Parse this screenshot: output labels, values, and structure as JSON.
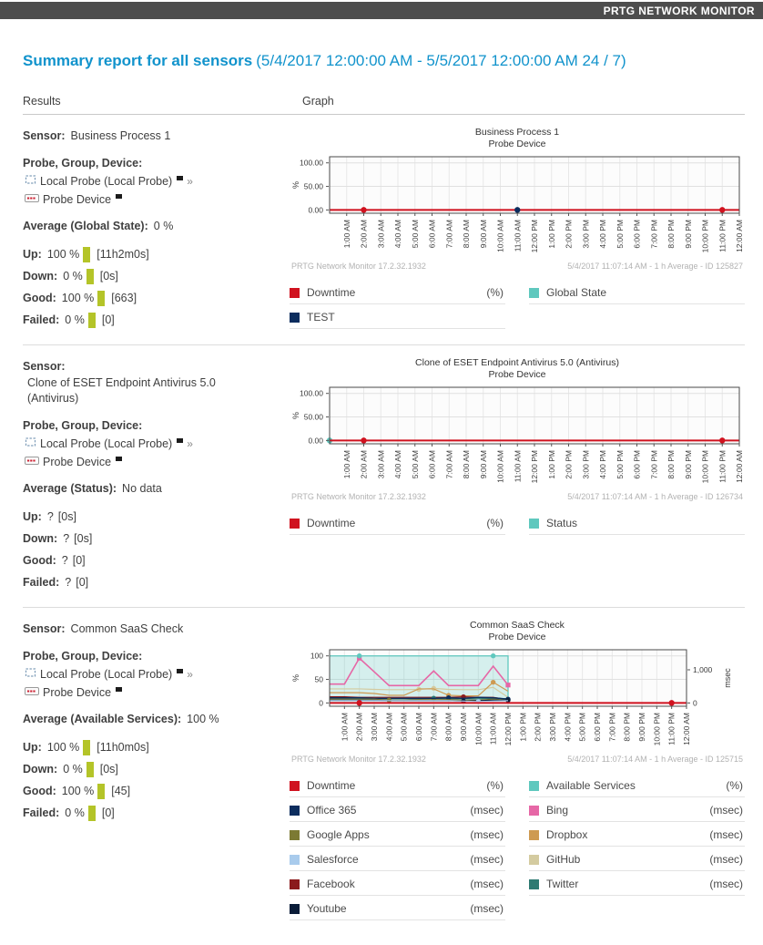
{
  "app": {
    "brand": "PRTG NETWORK MONITOR"
  },
  "report": {
    "title": "Summary report for all sensors",
    "date_range": "(5/4/2017 12:00:00 AM - 5/5/2017 12:00:00 AM 24 / 7)",
    "columns": {
      "results": "Results",
      "graph": "Graph"
    }
  },
  "labels": {
    "sensor": "Sensor:",
    "probe_group_device": "Probe, Group, Device:",
    "more": "»"
  },
  "colors": {
    "topbar": "#4D4D4D",
    "accent_blue": "#1193CC",
    "stat_bar": "#B4C428",
    "downtime_red": "#D0121F",
    "teal": "#5FC8BE"
  },
  "x_labels": [
    "1:00 AM",
    "2:00 AM",
    "3:00 AM",
    "4:00 AM",
    "5:00 AM",
    "6:00 AM",
    "7:00 AM",
    "8:00 AM",
    "9:00 AM",
    "10:00 AM",
    "11:00 AM",
    "12:00 PM",
    "1:00 PM",
    "2:00 PM",
    "3:00 PM",
    "4:00 PM",
    "5:00 PM",
    "6:00 PM",
    "7:00 PM",
    "8:00 PM",
    "9:00 PM",
    "10:00 PM",
    "11:00 PM",
    "12:00 AM"
  ],
  "sections": [
    {
      "sensor_name": "Business Process 1",
      "sensor_name_lines": null,
      "probe": "Local Probe (Local Probe)",
      "device": "Probe Device",
      "average_label": "Average (Global State):",
      "average_value": "0 %",
      "stats": [
        {
          "label": "Up:",
          "value": "100 %",
          "bar": true,
          "note": "[11h2m0s]"
        },
        {
          "label": "Down:",
          "value": "0 %",
          "bar": true,
          "note": "[0s]"
        },
        {
          "label": "Good:",
          "value": "100 %",
          "bar": true,
          "note": "[663]"
        },
        {
          "label": "Failed:",
          "value": "0 %",
          "bar": true,
          "note": "[0]"
        }
      ],
      "graph": {
        "title": "Business Process 1",
        "subtitle": "Probe Device",
        "footer_left": "PRTG Network Monitor 17.2.32.1932",
        "footer_right": "5/4/2017 11:07:14 AM - 1 h Average - ID 125827",
        "y_left": {
          "unit": "%",
          "ticks": [
            {
              "v": 100,
              "label": "100.00"
            },
            {
              "v": 50,
              "label": "50.00"
            },
            {
              "v": 0,
              "label": "0.00"
            }
          ]
        },
        "y_right": null,
        "area": null,
        "series": [
          {
            "name": "Global State",
            "color": "#5FC8BE",
            "axis": "left",
            "width": 1.2,
            "values": [
              0,
              0,
              0,
              0,
              0,
              0,
              0,
              0,
              0,
              0,
              0,
              0,
              0,
              0,
              0,
              0,
              0,
              0,
              0,
              0,
              0,
              0,
              0,
              0
            ],
            "markers": []
          },
          {
            "name": "Downtime",
            "color": "#D0121F",
            "axis": "left",
            "width": 2,
            "values": [
              0,
              0,
              0,
              0,
              0,
              0,
              0,
              0,
              0,
              0,
              0,
              0,
              0,
              0,
              0,
              0,
              0,
              0,
              0,
              0,
              0,
              0,
              0,
              0
            ],
            "markers": [
              2,
              23
            ]
          },
          {
            "name": "TEST",
            "color": "#0C2D5E",
            "axis": "left",
            "width": 1.2,
            "values": null,
            "markers": [
              11
            ]
          }
        ]
      },
      "legend": [
        {
          "label": "Downtime",
          "unit": "(%)",
          "color": "#D0121F"
        },
        {
          "label": "Global State",
          "unit": "",
          "color": "#5FC8BE"
        },
        {
          "label": "TEST",
          "unit": "",
          "color": "#0C2D5E"
        }
      ]
    },
    {
      "sensor_name": "Clone of ESET Endpoint Antivirus 5.0 (Antivirus)",
      "sensor_name_lines": [
        "Clone of ESET Endpoint Antivirus 5.0",
        "(Antivirus)"
      ],
      "probe": "Local Probe (Local Probe)",
      "device": "Probe Device",
      "average_label": "Average (Status):",
      "average_value": "No data",
      "stats": [
        {
          "label": "Up:",
          "value": "?",
          "bar": false,
          "note": "[0s]"
        },
        {
          "label": "Down:",
          "value": "?",
          "bar": false,
          "note": "[0s]"
        },
        {
          "label": "Good:",
          "value": "?",
          "bar": false,
          "note": "[0]"
        },
        {
          "label": "Failed:",
          "value": "?",
          "bar": false,
          "note": "[0]"
        }
      ],
      "graph": {
        "title": "Clone of ESET Endpoint Antivirus 5.0 (Antivirus)",
        "subtitle": "Probe Device",
        "footer_left": "PRTG Network Monitor 17.2.32.1932",
        "footer_right": "5/4/2017 11:07:14 AM - 1 h Average - ID 126734",
        "y_left": {
          "unit": "%",
          "ticks": [
            {
              "v": 100,
              "label": "100.00"
            },
            {
              "v": 50,
              "label": "50.00"
            },
            {
              "v": 0,
              "label": "0.00"
            }
          ]
        },
        "y_right": null,
        "area": null,
        "series": [
          {
            "name": "Status",
            "color": "#5FC8BE",
            "axis": "left",
            "width": 1.2,
            "values": [
              0,
              0,
              0,
              0,
              0,
              0,
              0,
              0,
              0,
              0,
              0,
              0,
              0,
              0,
              0,
              0,
              0,
              0,
              0,
              0,
              0,
              0,
              0,
              0
            ],
            "markers": [
              0
            ]
          },
          {
            "name": "Downtime",
            "color": "#D0121F",
            "axis": "left",
            "width": 2,
            "values": [
              0,
              0,
              0,
              0,
              0,
              0,
              0,
              0,
              0,
              0,
              0,
              0,
              0,
              0,
              0,
              0,
              0,
              0,
              0,
              0,
              0,
              0,
              0,
              0
            ],
            "markers": [
              2,
              23
            ]
          }
        ]
      },
      "legend": [
        {
          "label": "Downtime",
          "unit": "(%)",
          "color": "#D0121F"
        },
        {
          "label": "Status",
          "unit": "",
          "color": "#5FC8BE"
        }
      ]
    },
    {
      "sensor_name": "Common SaaS Check",
      "sensor_name_lines": null,
      "probe": "Local Probe (Local Probe)",
      "device": "Probe Device",
      "average_label": "Average (Available Services):",
      "average_value": "100 %",
      "stats": [
        {
          "label": "Up:",
          "value": "100 %",
          "bar": true,
          "note": "[11h0m0s]"
        },
        {
          "label": "Down:",
          "value": "0 %",
          "bar": true,
          "note": "[0s]"
        },
        {
          "label": "Good:",
          "value": "100 %",
          "bar": true,
          "note": "[45]"
        },
        {
          "label": "Failed:",
          "value": "0 %",
          "bar": true,
          "note": "[0]"
        }
      ],
      "graph": {
        "title": "Common SaaS Check",
        "subtitle": "Probe Device",
        "footer_left": "PRTG Network Monitor 17.2.32.1932",
        "footer_right": "5/4/2017 11:07:14 AM - 1 h Average - ID 125715",
        "y_left": {
          "unit": "%",
          "ticks": [
            {
              "v": 100,
              "label": "100"
            },
            {
              "v": 50,
              "label": "50"
            },
            {
              "v": 0,
              "label": "0"
            }
          ]
        },
        "y_right": {
          "unit": "msec",
          "max": 1420,
          "ticks": [
            {
              "v": 1000,
              "label": "1,000"
            },
            {
              "v": 0,
              "label": "0"
            }
          ]
        },
        "area": {
          "name": "Available Services",
          "color": "#5FC8BE",
          "value": 100,
          "from_h": 1,
          "to_h": 12,
          "markers": [
            2,
            11
          ]
        },
        "series": [
          {
            "name": "GitHub",
            "color": "#D4CBA0",
            "axis": "right",
            "width": 1.2,
            "values": [
              425,
              425,
              410,
              400,
              400,
              410,
              440,
              410,
              400,
              400,
              470,
              170
            ],
            "markers": [
              6,
              7
            ]
          },
          {
            "name": "Dropbox",
            "color": "#CE9A52",
            "axis": "right",
            "width": 1.2,
            "values": [
              310,
              310,
              285,
              230,
              230,
              425,
              425,
              230,
              215,
              215,
              625,
              355
            ],
            "markers": [
              8,
              11
            ]
          },
          {
            "name": "Bing",
            "color": "#E667A6",
            "axis": "right",
            "width": 1.6,
            "marker": "square",
            "values": [
              570,
              1350,
              940,
              525,
              525,
              525,
              965,
              525,
              525,
              525,
              1110,
              540
            ],
            "markers": [
              2,
              12
            ]
          },
          {
            "name": "Facebook",
            "color": "#8B1A1C",
            "axis": "right",
            "width": 1.2,
            "values": [
              185,
              170,
              170,
              170,
              170,
              170,
              170,
              170,
              185,
              170,
              170,
              100
            ],
            "markers": [
              9
            ]
          },
          {
            "name": "Twitter",
            "color": "#2E7A72",
            "axis": "right",
            "width": 1.2,
            "values": [
              142,
              142,
              128,
              128,
              128,
              128,
              142,
              128,
              128,
              128,
              142,
              128
            ],
            "markers": [
              7
            ]
          },
          {
            "name": "Office 365",
            "color": "#0C2D5E",
            "axis": "right",
            "width": 1.4,
            "values": [
              155,
              155,
              140,
              140,
              140,
              140,
              140,
              155,
              140,
              170,
              155,
              115
            ],
            "markers": [
              8,
              12
            ]
          },
          {
            "name": "Google Apps",
            "color": "#7C7A33",
            "axis": "right",
            "width": 1.2,
            "values": [
              115,
              115,
              115,
              85,
              85,
              100,
              100,
              100,
              85,
              85,
              115,
              85
            ],
            "markers": [
              4
            ]
          },
          {
            "name": "Youtube",
            "color": "#0A1C38",
            "axis": "right",
            "width": 1.2,
            "values": [
              85,
              85,
              85,
              70,
              70,
              70,
              70,
              70,
              57,
              70,
              85,
              85
            ],
            "markers": [
              9,
              12
            ]
          },
          {
            "name": "Salesforce",
            "color": "#A9CBEC",
            "axis": "right",
            "width": 1.2,
            "values": [
              70,
              70,
              70,
              70,
              70,
              70,
              70,
              70,
              57,
              43,
              57,
              70
            ],
            "markers": [
              10
            ]
          },
          {
            "name": "Downtime",
            "color": "#D0121F",
            "axis": "left",
            "width": 2,
            "values": [
              0,
              0,
              0,
              0,
              0,
              0,
              0,
              0,
              0,
              0,
              0,
              0,
              0,
              0,
              0,
              0,
              0,
              0,
              0,
              0,
              0,
              0,
              0,
              0
            ],
            "markers": [
              2,
              23
            ]
          }
        ]
      },
      "legend": [
        {
          "label": "Downtime",
          "unit": "(%)",
          "color": "#D0121F"
        },
        {
          "label": "Available Services",
          "unit": "(%)",
          "color": "#5FC8BE"
        },
        {
          "label": "Office 365",
          "unit": "(msec)",
          "color": "#0C2D5E"
        },
        {
          "label": "Bing",
          "unit": "(msec)",
          "color": "#E667A6"
        },
        {
          "label": "Google Apps",
          "unit": "(msec)",
          "color": "#7C7A33"
        },
        {
          "label": "Dropbox",
          "unit": "(msec)",
          "color": "#CE9A52"
        },
        {
          "label": "Salesforce",
          "unit": "(msec)",
          "color": "#A9CBEC"
        },
        {
          "label": "GitHub",
          "unit": "(msec)",
          "color": "#D4CBA0"
        },
        {
          "label": "Facebook",
          "unit": "(msec)",
          "color": "#8B1A1C"
        },
        {
          "label": "Twitter",
          "unit": "(msec)",
          "color": "#2E7A72"
        },
        {
          "label": "Youtube",
          "unit": "(msec)",
          "color": "#0A1C38"
        }
      ]
    }
  ]
}
